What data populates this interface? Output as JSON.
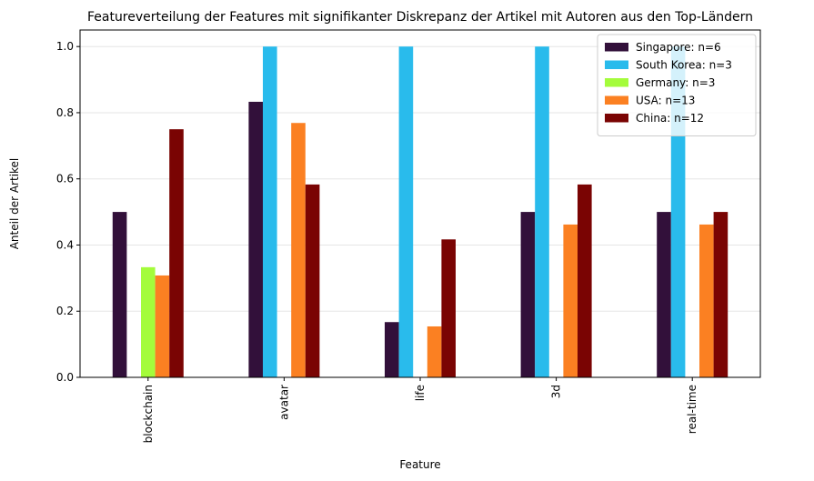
{
  "chart_data": {
    "type": "bar",
    "title": "Featureverteilung der Features mit signifikanter Diskrepanz der Artikel mit Autoren aus den Top-Ländern",
    "xlabel": "Feature",
    "ylabel": "Anteil der Artikel",
    "categories": [
      "blockchain",
      "avatar",
      "life",
      "3d",
      "real-time"
    ],
    "ylim": [
      0,
      1.05
    ],
    "yticks": [
      "0.0",
      "0.2",
      "0.4",
      "0.6",
      "0.8",
      "1.0"
    ],
    "grid": "horizontal",
    "legend_position": "top-right",
    "series": [
      {
        "name": "Singapore: n=6",
        "color": "#32103a",
        "values": [
          0.5,
          0.833,
          0.167,
          0.5,
          0.5
        ]
      },
      {
        "name": "South Korea: n=3",
        "color": "#29bbec",
        "values": [
          0.0,
          1.0,
          1.0,
          1.0,
          1.0
        ]
      },
      {
        "name": "Germany: n=3",
        "color": "#a4fc3b",
        "values": [
          0.333,
          0.0,
          0.0,
          0.0,
          0.0
        ]
      },
      {
        "name": "USA: n=13",
        "color": "#fb8022",
        "values": [
          0.308,
          0.769,
          0.154,
          0.462,
          0.462
        ]
      },
      {
        "name": "China: n=12",
        "color": "#7a0403",
        "values": [
          0.75,
          0.583,
          0.417,
          0.583,
          0.5
        ]
      }
    ]
  }
}
